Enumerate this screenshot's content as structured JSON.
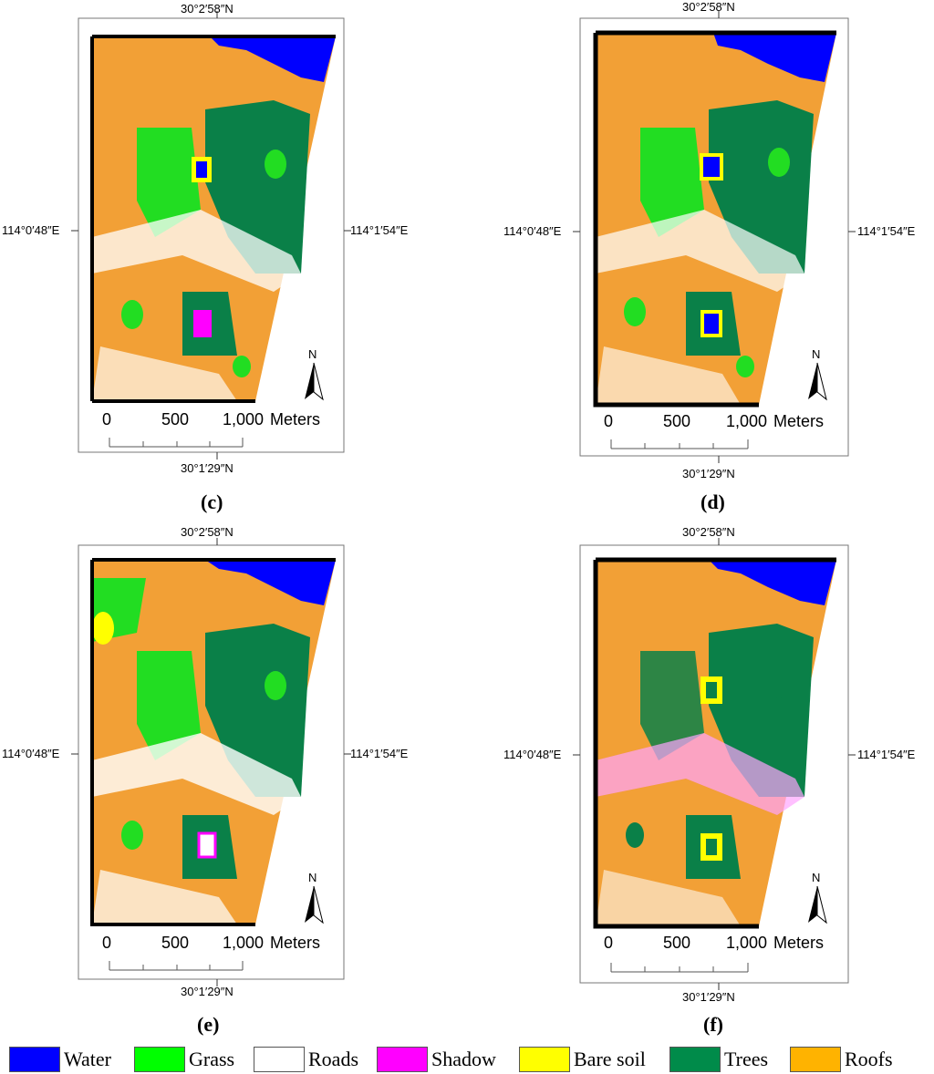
{
  "panels": [
    {
      "id": "c",
      "label": "(c)"
    },
    {
      "id": "d",
      "label": "(d)"
    },
    {
      "id": "e",
      "label": "(e)"
    },
    {
      "id": "f",
      "label": "(f)"
    }
  ],
  "coords": {
    "top": "30°2′58″N",
    "bottom": "30°1′29″N",
    "left": "114°0′48″E",
    "right": "114°1′54″E"
  },
  "scale_bar": {
    "ticks": [
      "0",
      "500",
      "1,000"
    ],
    "unit": "Meters"
  },
  "north_arrow": "N",
  "legend": [
    {
      "label": "Water",
      "color": "#0000ff"
    },
    {
      "label": "Grass",
      "color": "#00ff00"
    },
    {
      "label": "Roads",
      "color": "#ffffff"
    },
    {
      "label": "Shadow",
      "color": "#ff00ff"
    },
    {
      "label": "Bare soil",
      "color": "#ffff00"
    },
    {
      "label": "Trees",
      "color": "#008b4a"
    },
    {
      "label": "Roofs",
      "color": "#ffb300"
    }
  ]
}
